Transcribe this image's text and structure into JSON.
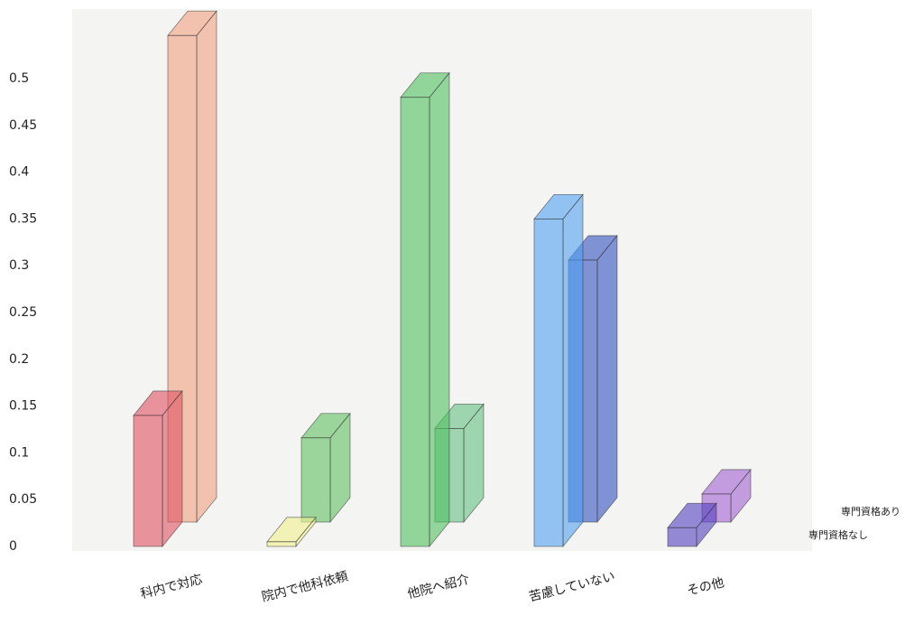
{
  "chart_data": {
    "type": "bar3d",
    "categories": [
      "科内で対応",
      "院内で他科依頼",
      "他院へ紹介",
      "苦慮していない",
      "その他"
    ],
    "series": [
      {
        "name": "専門資格あり",
        "colors": [
          "#f0a080",
          "#60c060",
          "#60c080",
          "#3050c0",
          "#a060d0"
        ],
        "values": [
          0.52,
          0.09,
          0.1,
          0.28,
          0.03
        ]
      },
      {
        "name": "専門資格なし",
        "colors": [
          "#e05060",
          "#f0f090",
          "#50c060",
          "#50a0f0",
          "#5040c0"
        ],
        "values": [
          0.14,
          0.005,
          0.48,
          0.35,
          0.02
        ]
      }
    ],
    "ylim": [
      0,
      0.5
    ],
    "yticks": [
      0,
      0.05,
      0.1,
      0.15,
      0.2,
      0.25,
      0.3,
      0.35,
      0.4,
      0.45,
      0.5
    ],
    "grid": false
  }
}
